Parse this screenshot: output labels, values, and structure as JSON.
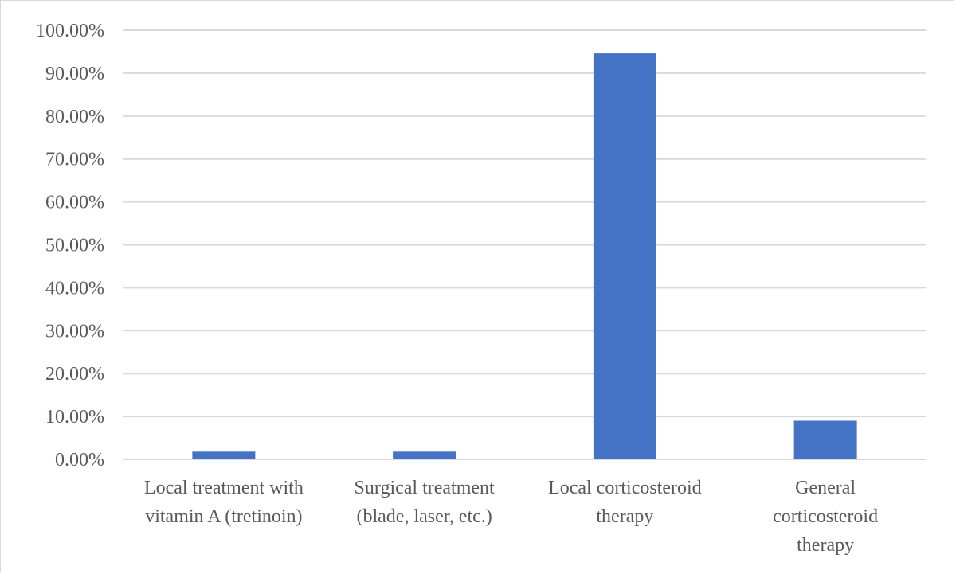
{
  "chart_data": {
    "type": "bar",
    "title": "",
    "xlabel": "",
    "ylabel": "",
    "categories": [
      [
        "Local treatment with",
        "vitamin A (tretinoin)"
      ],
      [
        "Surgical treatment",
        "(blade, laser, etc.)"
      ],
      [
        "Local corticosteroid",
        "therapy"
      ],
      [
        "General",
        "corticosteroid",
        "therapy"
      ]
    ],
    "values": [
      1.8,
      1.8,
      94.6,
      9.0
    ],
    "ylim": [
      0,
      100
    ],
    "yticks": [
      0,
      10,
      20,
      30,
      40,
      50,
      60,
      70,
      80,
      90,
      100
    ],
    "ytick_labels": [
      "0.00%",
      "10.00%",
      "20.00%",
      "30.00%",
      "40.00%",
      "50.00%",
      "60.00%",
      "70.00%",
      "80.00%",
      "90.00%",
      "100.00%"
    ],
    "grid": true,
    "legend": "none",
    "bar_color": "#4472c4"
  }
}
